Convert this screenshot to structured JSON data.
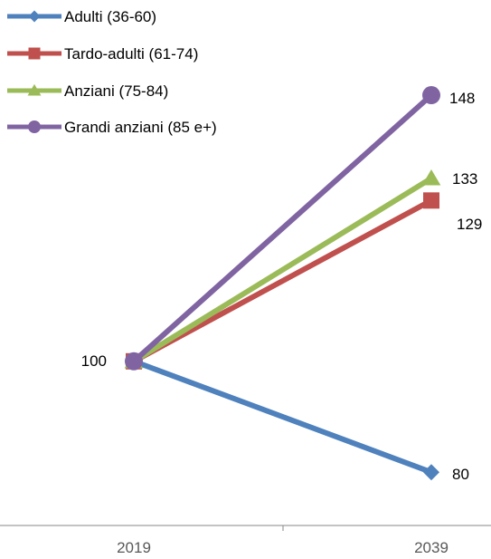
{
  "chart_data": {
    "type": "line",
    "categories": [
      "2019",
      "2039"
    ],
    "series": [
      {
        "name": "Adulti (36-60)",
        "values": [
          100,
          80
        ],
        "color": "#4F81BD",
        "marker": "diamond"
      },
      {
        "name": "Tardo-adulti (61-74)",
        "values": [
          100,
          129
        ],
        "color": "#C0504D",
        "marker": "square"
      },
      {
        "name": "Anziani (75-84)",
        "values": [
          100,
          133
        ],
        "color": "#9BBB59",
        "marker": "triangle"
      },
      {
        "name": "Grandi anziani (85 e+)",
        "values": [
          100,
          148
        ],
        "color": "#8064A2",
        "marker": "circle"
      }
    ],
    "data_labels": [
      {
        "text": "100",
        "series": 0,
        "point": 0
      },
      {
        "text": "148",
        "series": 3,
        "point": 1
      },
      {
        "text": "133",
        "series": 2,
        "point": 1
      },
      {
        "text": "129",
        "series": 1,
        "point": 1
      },
      {
        "text": "80",
        "series": 0,
        "point": 1
      }
    ],
    "legend_position": "top-left",
    "grid": false
  }
}
